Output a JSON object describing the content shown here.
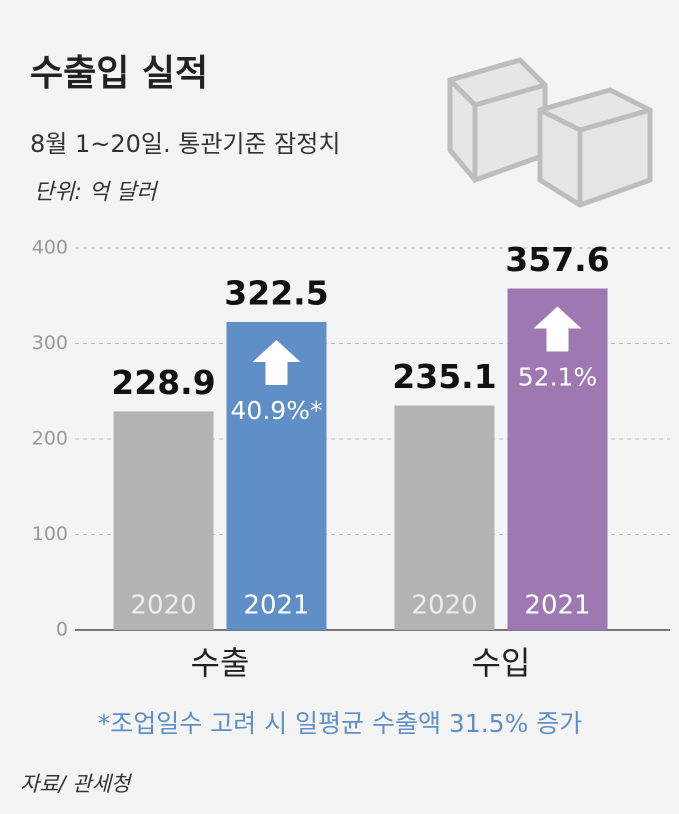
{
  "chart_data": {
    "type": "bar",
    "title": "수출입 실적",
    "subtitle": "8월 1~20일. 통관기준 잠정치",
    "unit": "단위: 억 달러",
    "categories": [
      "수출",
      "수입"
    ],
    "series": [
      {
        "name": "2020",
        "colors": [
          "#b3b3b3",
          "#b3b3b3"
        ],
        "values": [
          228.9,
          235.1
        ]
      },
      {
        "name": "2021",
        "colors": [
          "#5f8fc6",
          "#9e78b0"
        ],
        "values": [
          322.5,
          357.6
        ],
        "change_labels": [
          "40.9%*",
          "52.1%"
        ]
      }
    ],
    "ylim": [
      0,
      400
    ],
    "yticks": [
      0,
      100,
      200,
      300,
      400
    ],
    "grid": true,
    "footnote": "*조업일수 고려 시 일평균 수출액 31.5% 증가",
    "source": "자료/ 관세청"
  }
}
